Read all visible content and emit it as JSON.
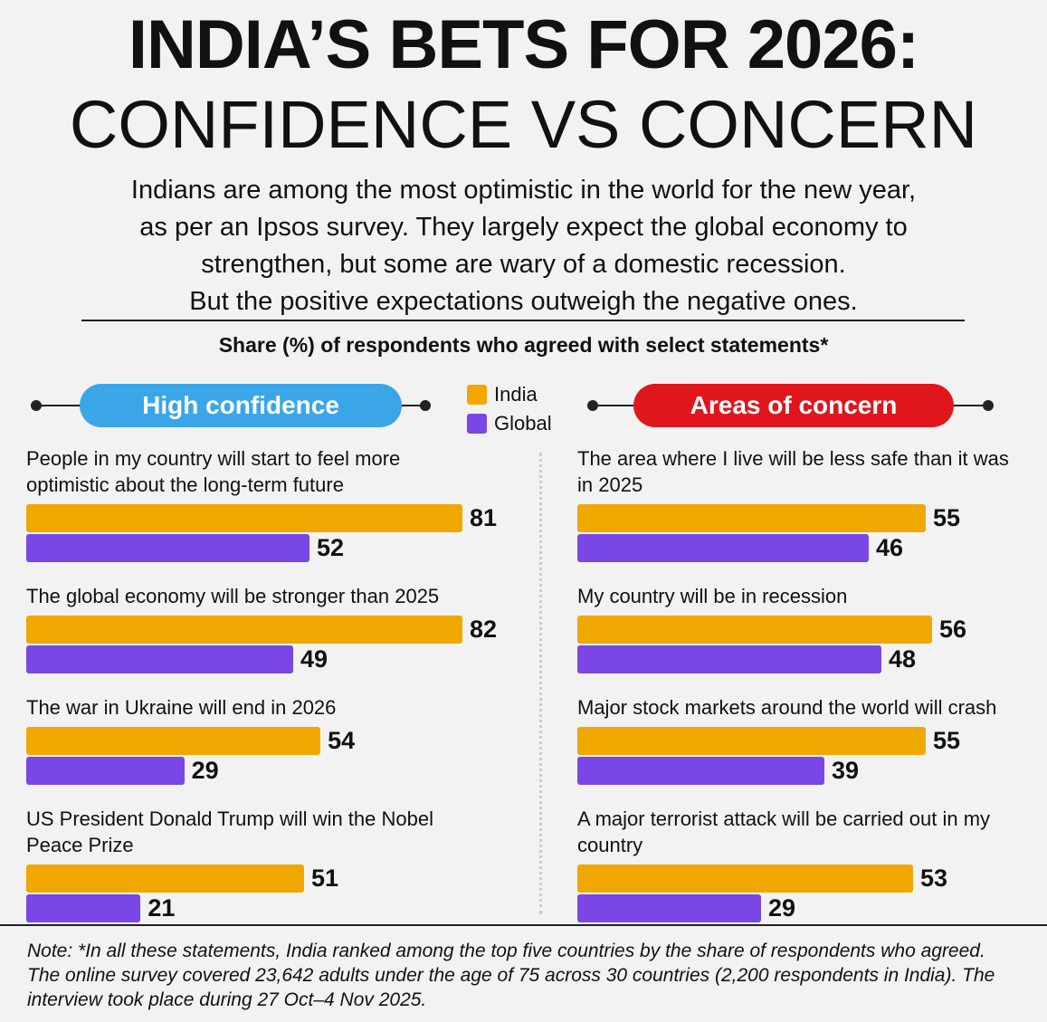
{
  "title_line1": "INDIA’S BETS FOR 2026:",
  "title_line2": "CONFIDENCE VS CONCERN",
  "subtitle": [
    "Indians are among the most optimistic in the world for the new year,",
    "as per an Ipsos survey. They largely expect the global economy to",
    "strengthen, but some are wary of a domestic recession.",
    "But the positive expectations outweigh the negative ones."
  ],
  "chart_caption": "Share (%) of respondents who agreed with select statements*",
  "chart_data": [
    {
      "type": "bar",
      "orientation": "horizontal",
      "title": "High confidence",
      "title_color": "#3aa6e8",
      "categories": [
        "People in my country will start to feel more optimistic about the long-term future",
        "The global economy will be stronger than 2025",
        "The war in Ukraine will end in 2026",
        "US President Donald Trump will win the Nobel Peace Prize"
      ],
      "series": [
        {
          "name": "India",
          "color": "#f0a800",
          "values": [
            81,
            82,
            54,
            51
          ]
        },
        {
          "name": "Global",
          "color": "#7b46e6",
          "values": [
            52,
            49,
            29,
            21
          ]
        }
      ]
    },
    {
      "type": "bar",
      "orientation": "horizontal",
      "title": "Areas of concern",
      "title_color": "#e0161d",
      "categories": [
        "The area where I live will be less safe than it was in 2025",
        "My country will be in recession",
        "Major stock markets around the world will crash",
        "A major terrorist attack will be carried out in my country"
      ],
      "series": [
        {
          "name": "India",
          "color": "#f0a800",
          "values": [
            55,
            56,
            55,
            53
          ]
        },
        {
          "name": "Global",
          "color": "#7b46e6",
          "values": [
            46,
            48,
            39,
            29
          ]
        }
      ]
    }
  ],
  "note": "Note: *In all these statements, India ranked among the top five countries by the share of respondents who agreed. The online survey covered 23,642 adults under the age of 75 across 30 countries (2,200 respondents in India). The interview took place during 27 Oct–4 Nov 2025."
}
